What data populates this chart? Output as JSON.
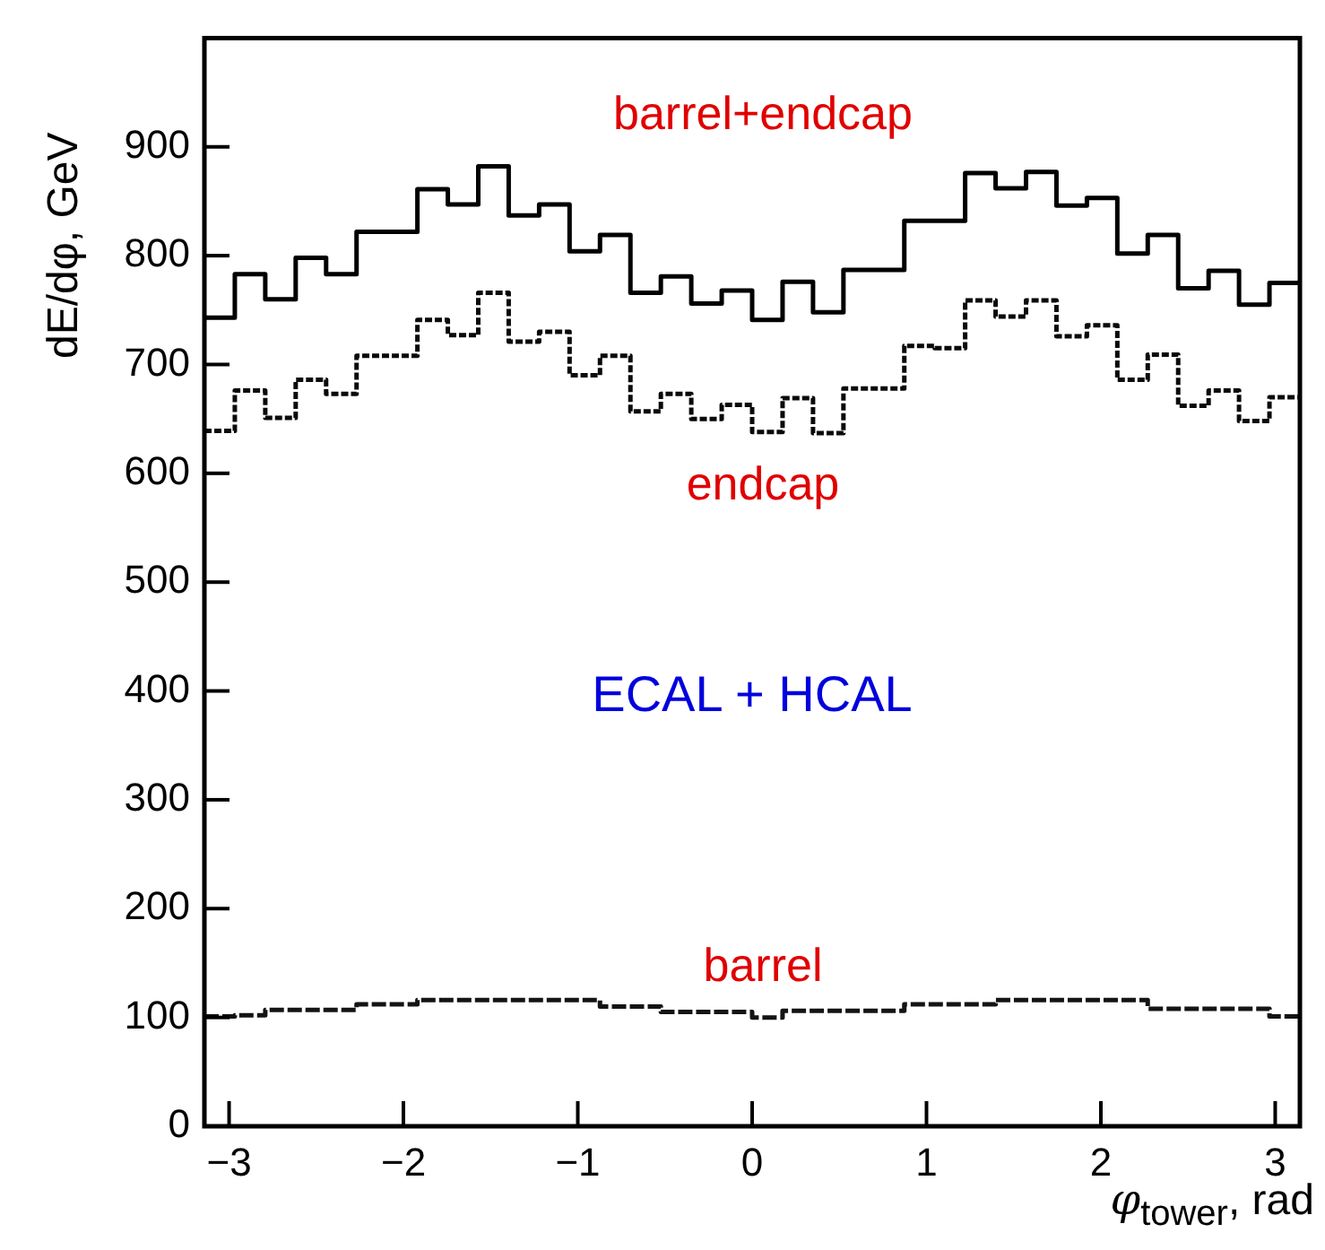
{
  "chart_data": {
    "type": "histogram",
    "xlabel": "φ$_{tower}$, rad",
    "ylabel": "dE/dφ, GeV",
    "bins": [
      -3.1416,
      -2.9671,
      -2.7925,
      -2.618,
      -2.4435,
      -2.2689,
      -2.0944,
      -1.9199,
      -1.7453,
      -1.5708,
      -1.3963,
      -1.2217,
      -1.0472,
      -0.8727,
      -0.6981,
      -0.5236,
      -0.3491,
      -0.1745,
      0,
      0.1745,
      0.3491,
      0.5236,
      0.6981,
      0.8727,
      1.0472,
      1.2217,
      1.3963,
      1.5708,
      1.7453,
      1.9199,
      2.0944,
      2.2689,
      2.4435,
      2.618,
      2.7925,
      2.9671,
      3.1416
    ],
    "series": [
      {
        "name": "barrel+endcap",
        "color": "#000000",
        "line_style": "solid",
        "values": [
          743,
          783,
          760,
          798,
          783,
          822,
          822,
          861,
          847,
          882,
          837,
          847,
          804,
          819,
          766,
          781,
          756,
          768,
          741,
          776,
          748,
          787,
          787,
          832,
          832,
          876,
          862,
          877,
          846,
          853,
          802,
          819,
          770,
          786,
          755,
          775
        ]
      },
      {
        "name": "endcap",
        "color": "#0a0a0a",
        "line_style": "dotted",
        "values": [
          639,
          676,
          651,
          686,
          673,
          708,
          708,
          741,
          727,
          766,
          721,
          730,
          690,
          708,
          657,
          673,
          650,
          663,
          638,
          669,
          637,
          678,
          678,
          717,
          715,
          759,
          744,
          759,
          726,
          736,
          686,
          709,
          662,
          676,
          648,
          670
        ]
      },
      {
        "name": "barrel",
        "color": "#141414",
        "line_style": "dashed",
        "values": [
          101,
          102,
          107,
          107,
          107,
          112,
          112,
          116,
          116,
          116,
          116,
          116,
          116,
          110,
          110,
          105,
          105,
          105,
          100,
          106,
          106,
          106,
          106,
          112,
          112,
          112,
          116,
          116,
          116,
          116,
          116,
          108,
          108,
          108,
          108,
          101
        ]
      }
    ],
    "xlim": [
      -3.1416,
      3.1416
    ],
    "xticks": [
      -3,
      -2,
      -1,
      0,
      1,
      2,
      3
    ],
    "ylim": [
      0,
      1000
    ],
    "yticks": [
      0,
      100,
      200,
      300,
      400,
      500,
      600,
      700,
      800,
      900
    ],
    "grid": false,
    "legend": false,
    "annotations": [
      "ECAL + HCAL"
    ]
  }
}
